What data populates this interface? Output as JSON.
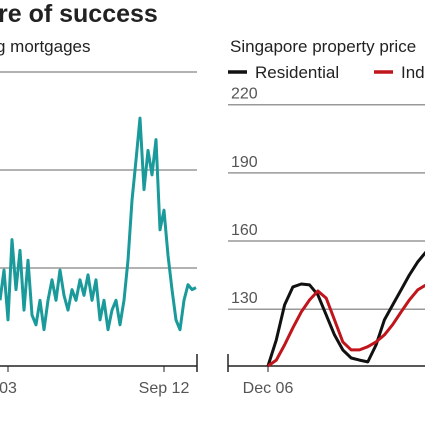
{
  "headline": "re of success",
  "chart_data": [
    {
      "type": "line",
      "title": "g mortgages",
      "categories": [
        null,
        null,
        "03",
        null,
        null,
        null,
        null,
        null,
        null,
        null,
        null,
        null,
        null,
        null,
        null,
        null,
        null,
        null,
        null,
        null,
        null,
        null,
        null,
        null,
        null,
        null,
        null,
        null,
        null,
        null,
        null,
        null,
        null,
        null,
        null,
        null,
        null,
        null,
        null,
        null,
        null,
        "Sep 12",
        null,
        null,
        null,
        null,
        null,
        null,
        null,
        null
      ],
      "series": [
        {
          "name": "Mortgages",
          "color": "#1a9a9a",
          "values": [
            0.67,
            0.98,
            0.47,
            1.29,
            0.78,
            1.18,
            0.57,
            1.08,
            0.52,
            0.42,
            0.67,
            0.37,
            0.67,
            0.88,
            0.67,
            0.98,
            0.72,
            0.57,
            0.78,
            0.67,
            0.88,
            0.72,
            0.93,
            0.67,
            0.88,
            0.47,
            0.67,
            0.37,
            0.57,
            0.67,
            0.42,
            0.67,
            1.08,
            1.69,
            2.1,
            2.53,
            1.8,
            2.2,
            1.95,
            2.31,
            1.39,
            1.59,
            1.13,
            0.78,
            0.47,
            0.37,
            0.67,
            0.83,
            0.78,
            0.8
          ]
        }
      ],
      "ylim": [
        0,
        3
      ]
    },
    {
      "type": "line",
      "title": "Singapore property price",
      "categories": [
        "Dec 06",
        null,
        null,
        null,
        null,
        null,
        null,
        null,
        null,
        null,
        null,
        null,
        null,
        null,
        null,
        null,
        null,
        null,
        null,
        null
      ],
      "series": [
        {
          "name": "Residential",
          "color": "#111111",
          "values": [
            105,
            116.5,
            131.9,
            139.8,
            141.1,
            140.7,
            136.3,
            127.5,
            118.7,
            112.1,
            108.5,
            107.6,
            106.8,
            114.3,
            125.3,
            131.9,
            138.5,
            145.1,
            150.8,
            155.2
          ]
        },
        {
          "name": "Ind",
          "color": "#c0151b",
          "values": [
            105,
            107.6,
            114.3,
            121.8,
            128.8,
            134.1,
            138,
            134.9,
            125.3,
            115.6,
            112.1,
            112.1,
            113.5,
            115.6,
            118.7,
            123.2,
            128.8,
            134.1,
            138.5,
            140.7
          ]
        }
      ],
      "ylim": [
        105,
        230
      ],
      "yticks": [
        130,
        160,
        190,
        220
      ],
      "grid": true
    }
  ]
}
